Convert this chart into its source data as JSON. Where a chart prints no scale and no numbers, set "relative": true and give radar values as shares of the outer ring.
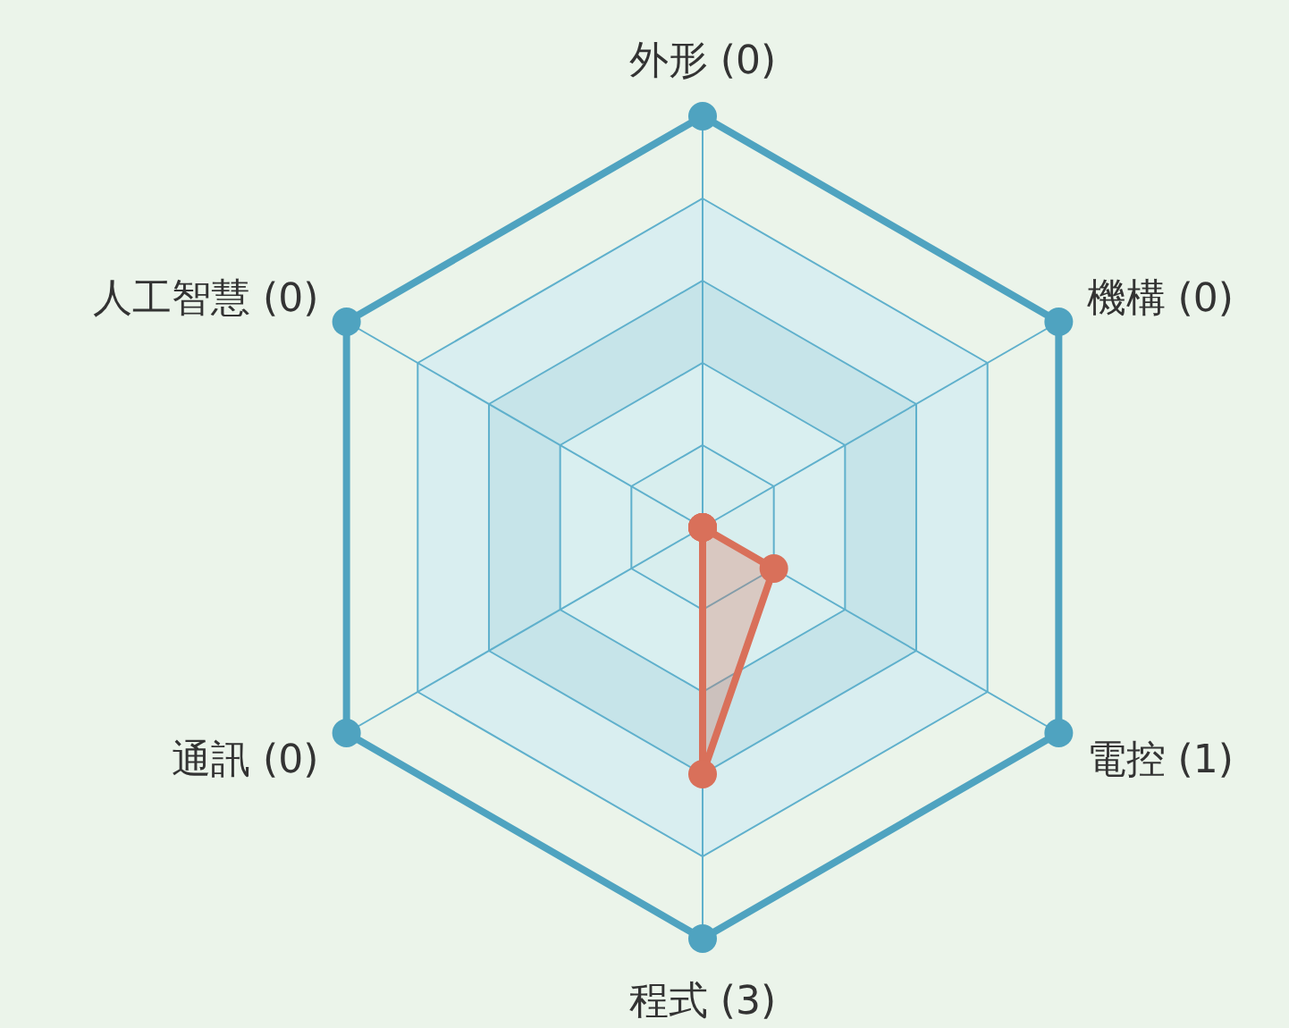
{
  "chart_data": {
    "type": "radar",
    "relative": true,
    "marker": "circle",
    "categories": [
      "外形 (0)",
      "機構 (0)",
      "電控 (1)",
      "程式 (3)",
      "通訊 (0)",
      "人工智慧 (0)"
    ],
    "series": [
      {
        "color": "#d9705a",
        "values": [
          0,
          0,
          0.2,
          0.6,
          0,
          0
        ]
      }
    ]
  }
}
